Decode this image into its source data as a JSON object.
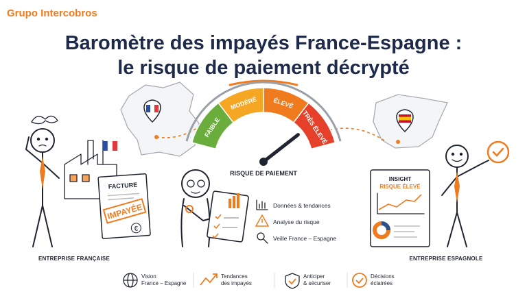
{
  "brand": "Grupo Intercobros",
  "title": {
    "line1": "Baromètre des impayés France-Espagne :",
    "line2": "le risque de paiement décrypté"
  },
  "gauge": {
    "segments": [
      "FAIBLE",
      "MODÉRÉ",
      "ÉLEVÉ",
      "TRÈS ÉLEVÉ"
    ],
    "label": "RISQUE DE PAIEMENT"
  },
  "invoice": {
    "title": "FACTURE",
    "stamp": "IMPAYÉE",
    "currency": "€"
  },
  "analysis": {
    "items": [
      "Données & tendances",
      "Analyse du risque",
      "Veille France – Espagne"
    ]
  },
  "insight": {
    "title": "INSIGHT",
    "subtitle": "RISQUE ÉLEVÉ"
  },
  "companies": {
    "france": "ENTREPRISE FRANÇAISE",
    "spain": "ENTREPRISE ESPAGNOLE"
  },
  "footer": {
    "items": [
      {
        "lines": [
          "Vision",
          "France – Espagne"
        ]
      },
      {
        "lines": [
          "Tendances",
          "des impayés"
        ]
      },
      {
        "lines": [
          "Anticiper",
          "& sécuriser"
        ]
      },
      {
        "lines": [
          "Décisions",
          "éclairées"
        ]
      }
    ]
  }
}
